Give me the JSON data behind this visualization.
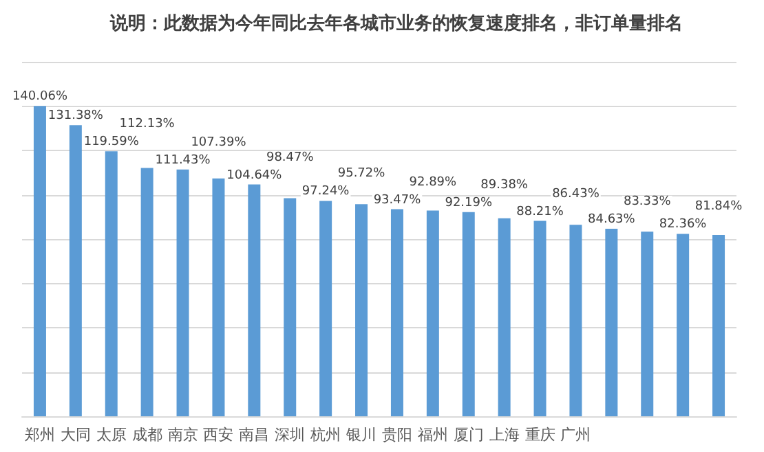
{
  "chart_data": {
    "type": "bar",
    "title": "说明：此数据为今年同比去年各城市业务的恢复速度排名，非订单量排名",
    "categories": [
      "郑州",
      "大同",
      "太原",
      "成都",
      "南京",
      "西安",
      "南昌",
      "深圳",
      "杭州",
      "银川",
      "贵阳",
      "福州",
      "厦门",
      "上海",
      "重庆",
      "广州",
      null,
      null,
      null,
      null
    ],
    "values": [
      140.06,
      131.38,
      119.59,
      112.13,
      111.43,
      107.39,
      104.64,
      98.47,
      97.24,
      95.72,
      93.47,
      92.89,
      92.19,
      89.38,
      88.21,
      86.43,
      84.63,
      83.33,
      82.36,
      81.84
    ],
    "value_labels": [
      "140.06%",
      "131.38%",
      "119.59%",
      "112.13%",
      "111.43%",
      "107.39%",
      "104.64%",
      "98.47%",
      "97.24%",
      "95.72%",
      "93.47%",
      "92.89%",
      "92.19%",
      "89.38%",
      "88.21%",
      "86.43%",
      "84.63%",
      "83.33%",
      "82.36%",
      "81.84%"
    ],
    "color": "#5b9bd5",
    "ylim": [
      0,
      160
    ],
    "yticks": [
      {
        "value": 0,
        "label": null
      },
      {
        "value": 20,
        "label": null
      },
      {
        "value": 40,
        "label": null
      },
      {
        "value": 60,
        "label": null
      },
      {
        "value": 80,
        "label": null
      },
      {
        "value": 100,
        "label": null
      },
      {
        "value": 120,
        "label": null
      },
      {
        "value": 140,
        "label": null
      },
      {
        "value": 160,
        "label": null
      }
    ],
    "grid": "y",
    "tick_labels": "x"
  }
}
